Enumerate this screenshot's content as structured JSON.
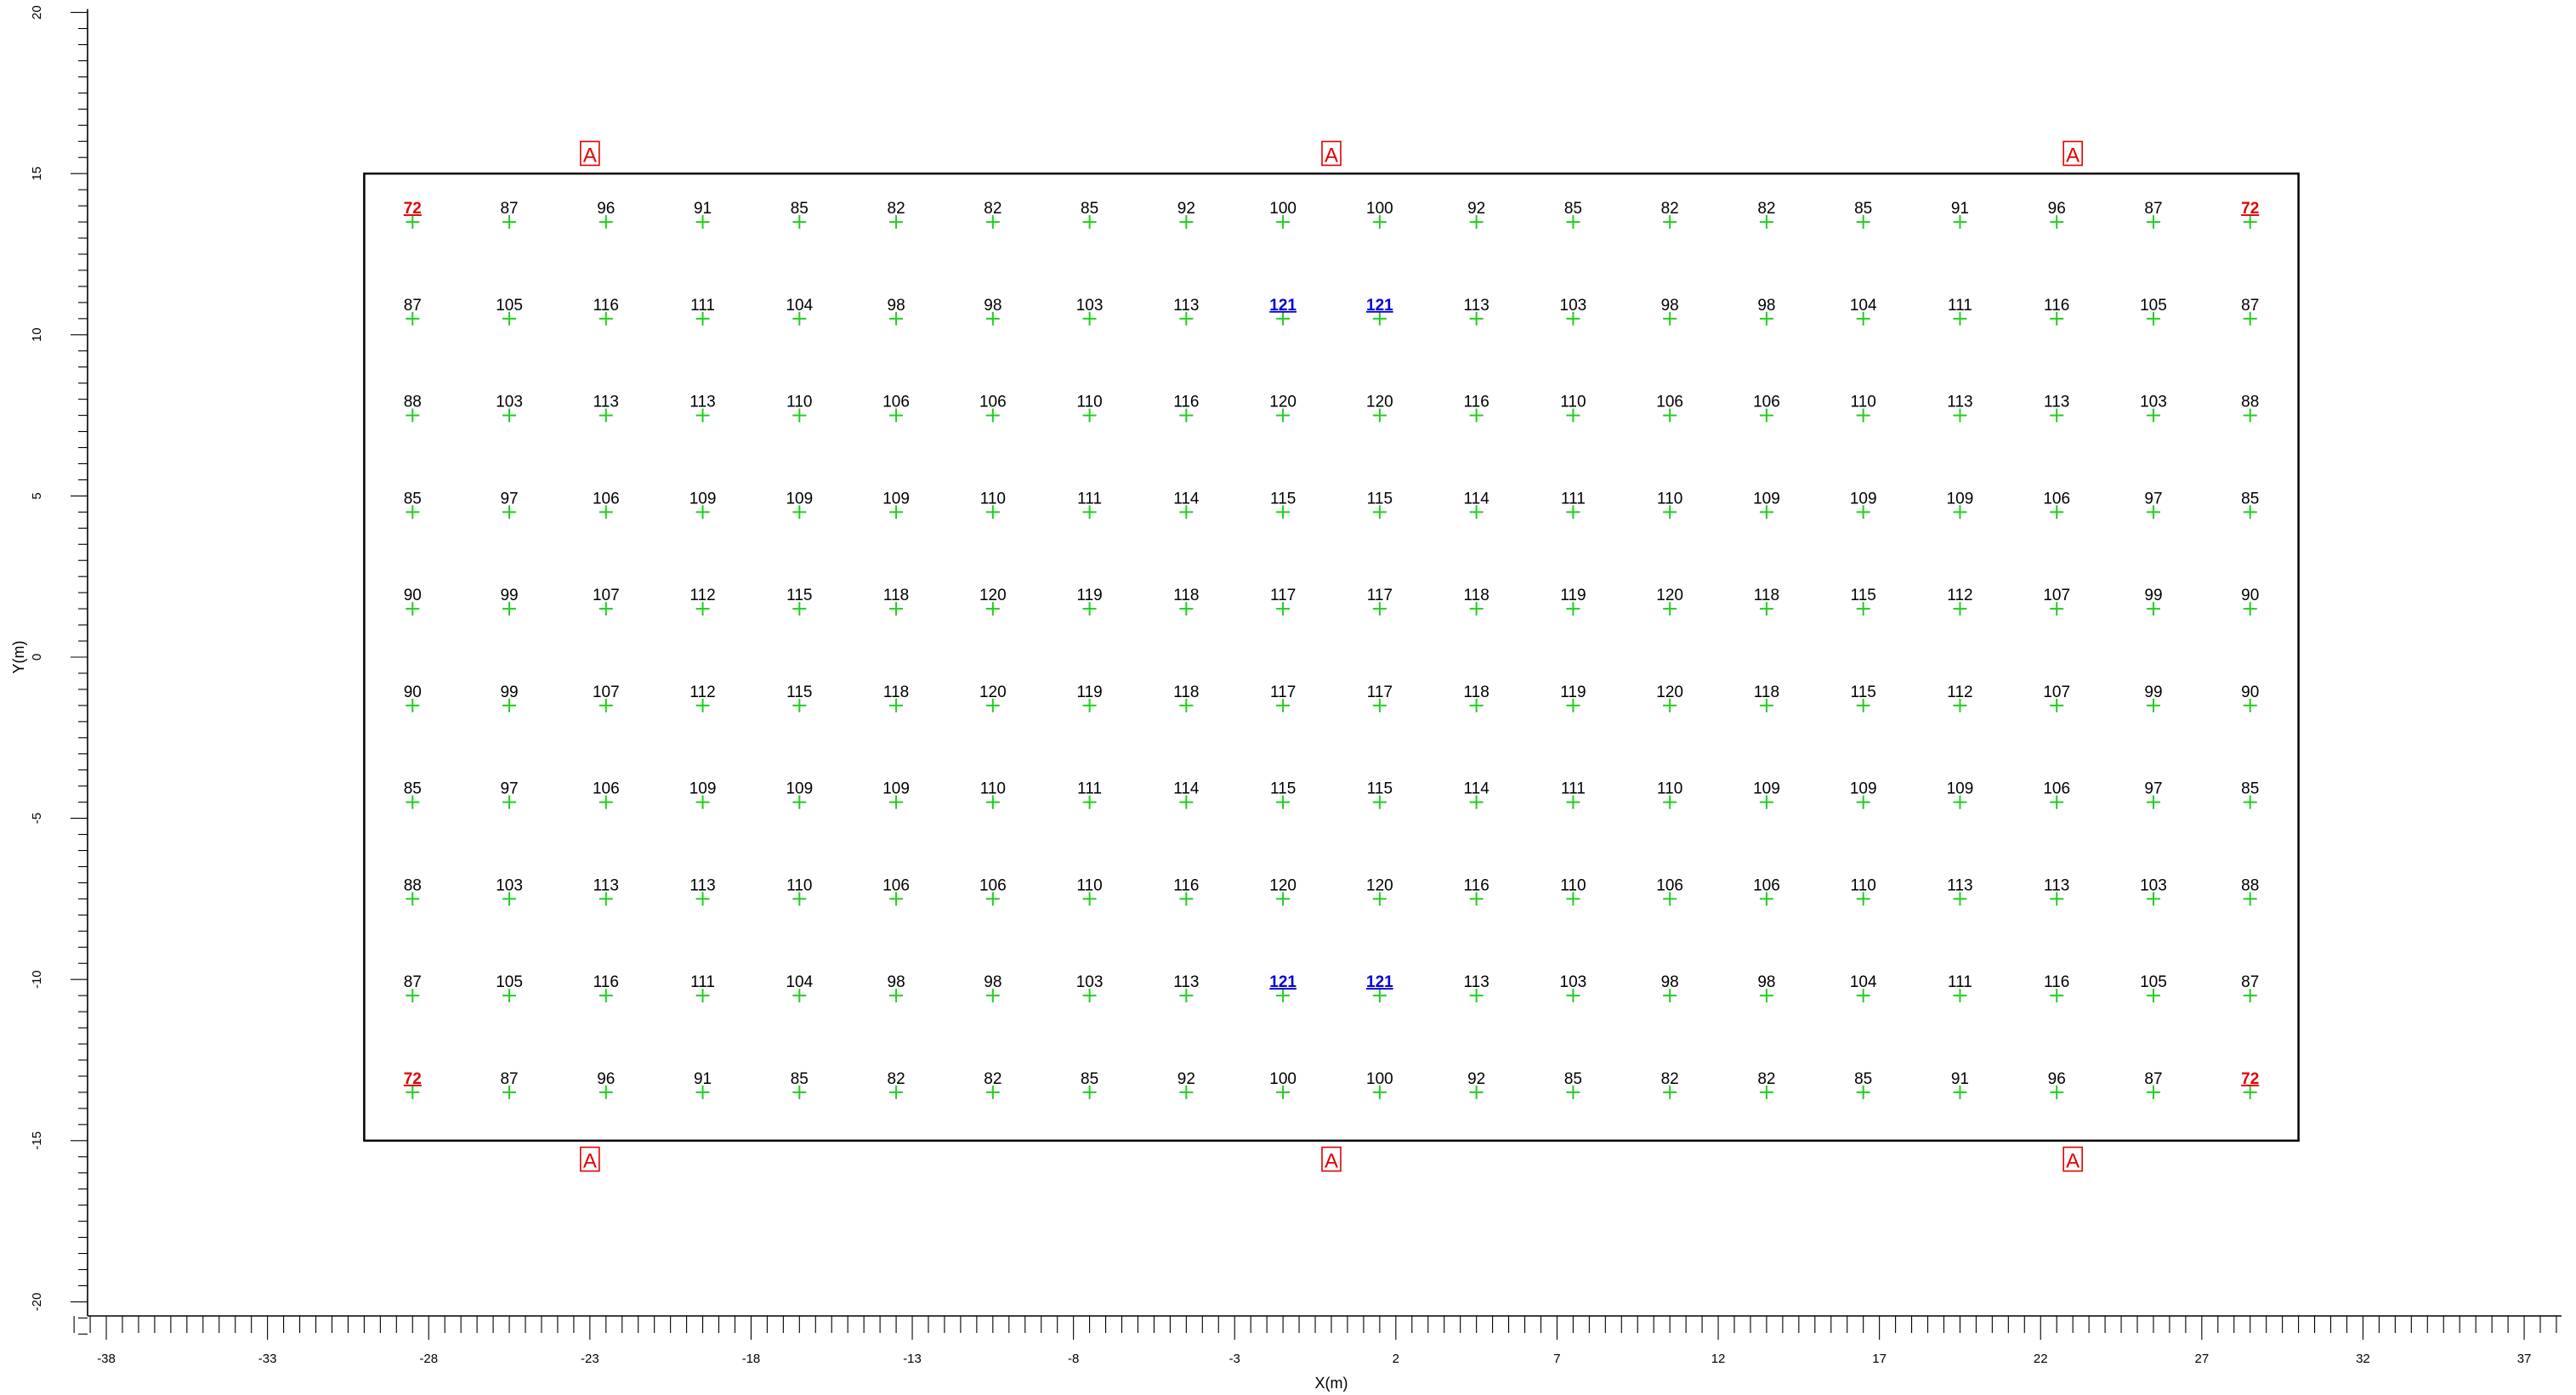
{
  "chart_data": {
    "type": "table",
    "xlabel": "X(m)",
    "ylabel": "Y(m)",
    "xlim": [
      -39,
      38
    ],
    "ylim": [
      -21,
      20
    ],
    "x_ticks": [
      -38,
      -33,
      -28,
      -23,
      -18,
      -13,
      -8,
      -3,
      2,
      7,
      12,
      17,
      22,
      27,
      32,
      37
    ],
    "y_ticks": [
      20,
      15,
      10,
      5,
      0,
      -5,
      -10,
      -15,
      -20
    ],
    "grid": false,
    "colors": {
      "marker": "#22cc22",
      "minimum": "#e00000",
      "maximum": "#0000d8",
      "luminaire": "#e00000",
      "frame": "#000000"
    },
    "area": {
      "x": [
        -30,
        30
      ],
      "y": [
        -15,
        15
      ]
    },
    "grid_points": {
      "x": [
        -28.5,
        -25.5,
        -22.5,
        -19.5,
        -16.5,
        -13.5,
        -10.5,
        -7.5,
        -4.5,
        -1.5,
        1.5,
        4.5,
        7.5,
        10.5,
        13.5,
        16.5,
        19.5,
        22.5,
        25.5,
        28.5
      ],
      "y": [
        13.5,
        10.5,
        7.5,
        4.5,
        1.5,
        -1.5,
        -4.5,
        -7.5,
        -10.5,
        -13.5
      ],
      "values": [
        [
          72,
          87,
          96,
          91,
          85,
          82,
          82,
          85,
          92,
          100,
          100,
          92,
          85,
          82,
          82,
          85,
          91,
          96,
          87,
          72
        ],
        [
          87,
          105,
          116,
          111,
          104,
          98,
          98,
          103,
          113,
          121,
          121,
          113,
          103,
          98,
          98,
          104,
          111,
          116,
          105,
          87
        ],
        [
          88,
          103,
          113,
          113,
          110,
          106,
          106,
          110,
          116,
          120,
          120,
          116,
          110,
          106,
          106,
          110,
          113,
          113,
          103,
          88
        ],
        [
          85,
          97,
          106,
          109,
          109,
          109,
          110,
          111,
          114,
          115,
          115,
          114,
          111,
          110,
          109,
          109,
          109,
          106,
          97,
          85
        ],
        [
          90,
          99,
          107,
          112,
          115,
          118,
          120,
          119,
          118,
          117,
          117,
          118,
          119,
          120,
          118,
          115,
          112,
          107,
          99,
          90
        ],
        [
          90,
          99,
          107,
          112,
          115,
          118,
          120,
          119,
          118,
          117,
          117,
          118,
          119,
          120,
          118,
          115,
          112,
          107,
          99,
          90
        ],
        [
          85,
          97,
          106,
          109,
          109,
          109,
          110,
          111,
          114,
          115,
          115,
          114,
          111,
          110,
          109,
          109,
          109,
          106,
          97,
          85
        ],
        [
          88,
          103,
          113,
          113,
          110,
          106,
          106,
          110,
          116,
          120,
          120,
          116,
          110,
          106,
          106,
          110,
          113,
          113,
          103,
          88
        ],
        [
          87,
          105,
          116,
          111,
          104,
          98,
          98,
          103,
          113,
          121,
          121,
          113,
          103,
          98,
          98,
          104,
          111,
          116,
          105,
          87
        ],
        [
          72,
          87,
          96,
          91,
          85,
          82,
          82,
          85,
          92,
          100,
          100,
          92,
          85,
          82,
          82,
          85,
          91,
          96,
          87,
          72
        ]
      ],
      "minimum": 72,
      "maximum": 121
    },
    "luminaires": {
      "label": "A",
      "positions": [
        {
          "x": -23,
          "y": 15.6
        },
        {
          "x": 0,
          "y": 15.6
        },
        {
          "x": 23,
          "y": 15.6
        },
        {
          "x": -23,
          "y": -15.6
        },
        {
          "x": 0,
          "y": -15.6
        },
        {
          "x": 23,
          "y": -15.6
        }
      ]
    }
  }
}
